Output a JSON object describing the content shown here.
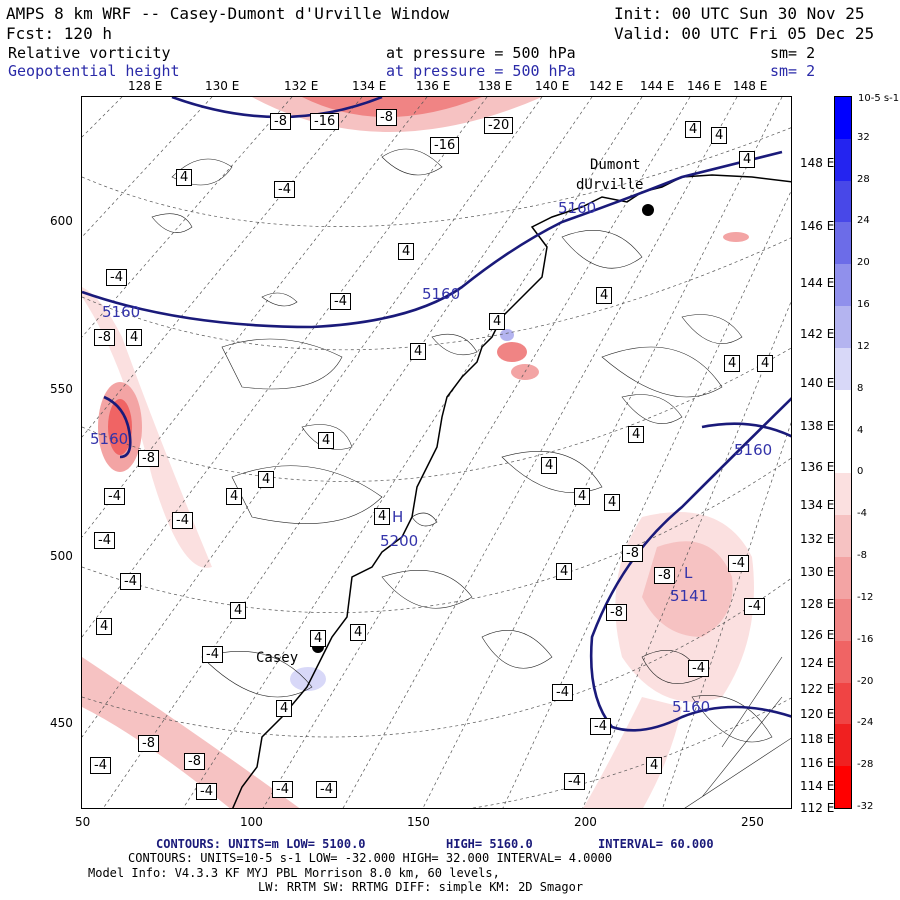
{
  "header": {
    "title": "AMPS 8 km WRF -- Casey-Dumont d'Urville Window",
    "init": "Init: 00 UTC Sun 30 Nov 25",
    "fcst": "Fcst:  120 h",
    "valid": "Valid: 00 UTC Fri 05 Dec 25",
    "field1_name": "Relative vorticity",
    "field1_level": "at pressure =  500 hPa",
    "field1_sm": "sm= 2",
    "field2_name": "Geopotential height",
    "field2_level": "at pressure =  500 hPa",
    "field2_sm": "sm= 2"
  },
  "map": {
    "top_longitudes": [
      "128 E",
      "130 E",
      "132 E",
      "134 E",
      "136 E",
      "138 E",
      "140 E",
      "142 E",
      "144 E",
      "146 E",
      "148 E"
    ],
    "right_longitudes": [
      "148 E",
      "146 E",
      "144 E",
      "142 E",
      "140 E",
      "138 E",
      "136 E",
      "134 E",
      "132 E",
      "130 E",
      "128 E",
      "126 E",
      "124 E",
      "122 E",
      "120 E",
      "118 E",
      "116 E",
      "114 E",
      "112 E"
    ],
    "x_ticks": [
      "50",
      "100",
      "150",
      "200",
      "250"
    ],
    "y_ticks": [
      "600",
      "550",
      "500",
      "450"
    ],
    "stations": [
      {
        "name": "Dumont",
        "name2": "dUrville"
      },
      {
        "name": "Casey"
      }
    ],
    "height_labels": [
      "5160",
      "5160",
      "5160",
      "5160",
      "5160",
      "5200",
      "5141"
    ],
    "pressure_centers": [
      "H",
      "L"
    ],
    "vorticity_labels": [
      "4",
      "-4",
      "-8",
      "-16",
      "-20"
    ]
  },
  "colorbar": {
    "unit": "10-5 s-1",
    "ticks": [
      "32",
      "28",
      "24",
      "20",
      "16",
      "12",
      "8",
      "4",
      "0",
      "-4",
      "-8",
      "-12",
      "-16",
      "-20",
      "-24",
      "-28",
      "-32"
    ],
    "colors": [
      "#0000ff",
      "#2424f0",
      "#4848e8",
      "#6c6ce8",
      "#9090ec",
      "#b4b4f0",
      "#d8d8f8",
      "#ffffff",
      "#ffffff",
      "#fbe0e0",
      "#f6c2c2",
      "#f3a4a4",
      "#f08484",
      "#f06464",
      "#f04444",
      "#f02020",
      "#ff0000"
    ]
  },
  "footer": {
    "line1_a": "CONTOURS:  UNITS=m  LOW=  5100.0",
    "line1_b": "HIGH=  5160.0",
    "line1_c": "INTERVAL=  60.000",
    "line2": "CONTOURS:  UNITS=10-5 s-1  LOW= -32.000      HIGH=  32.000     INTERVAL=  4.0000",
    "line3": "Model Info: V4.3.3   KF      MYJ PBL  Morrison           8.0 km,  60 levels,",
    "line4": "LW: RRTM SW: RRTMG   DIFF: simple KM: 2D Smagor"
  }
}
